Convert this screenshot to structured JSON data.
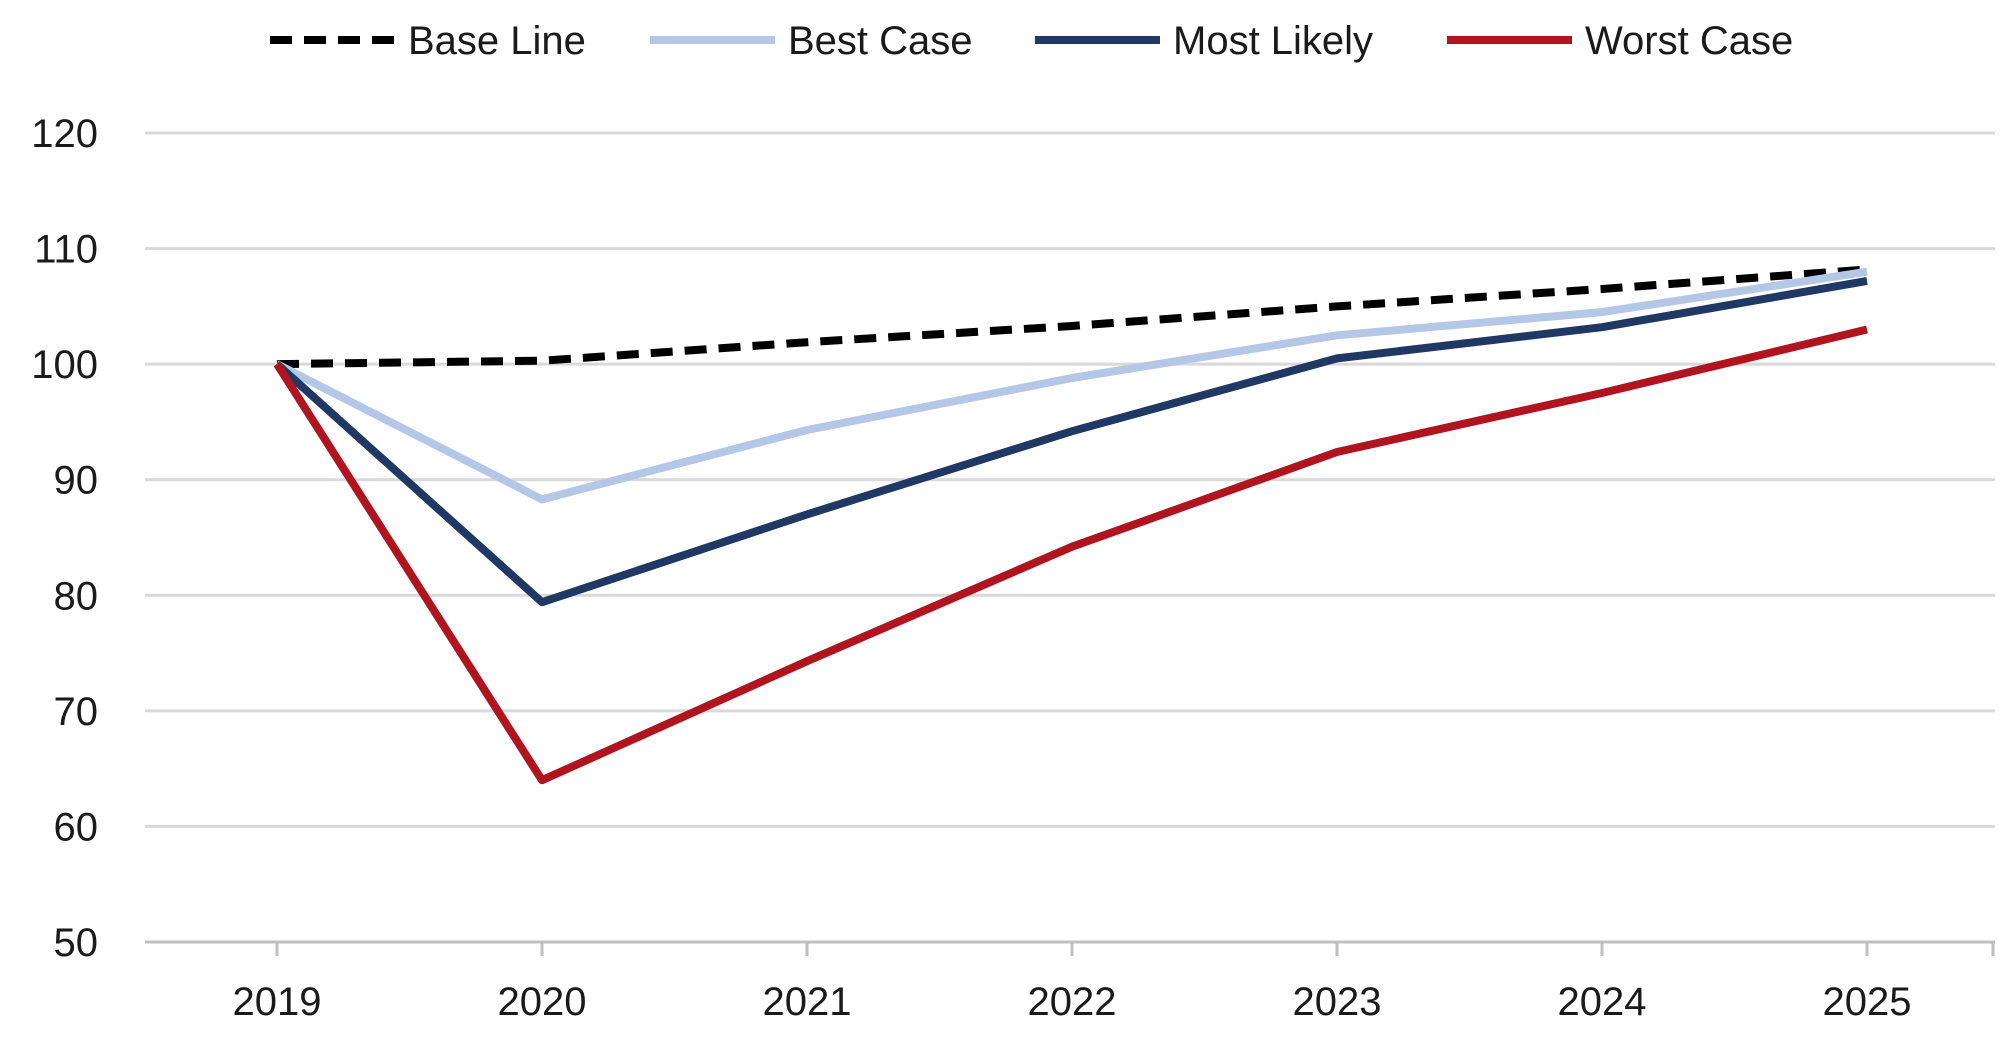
{
  "chart_data": {
    "type": "line",
    "title": "",
    "xlabel": "",
    "ylabel": "",
    "categories": [
      "2019",
      "2020",
      "2021",
      "2022",
      "2023",
      "2024",
      "2025"
    ],
    "ylim": [
      50,
      120
    ],
    "yticks": [
      50,
      60,
      70,
      80,
      90,
      100,
      110,
      120
    ],
    "grid": true,
    "legend_position": "top",
    "series": [
      {
        "name": "Base Line",
        "color": "#000000",
        "dashed": true,
        "values": [
          100,
          100.3,
          101.9,
          103.3,
          105.0,
          106.5,
          108.2
        ]
      },
      {
        "name": "Best Case",
        "color": "#b4c7e7",
        "dashed": false,
        "values": [
          100,
          88.3,
          94.3,
          98.8,
          102.5,
          104.5,
          108.0
        ]
      },
      {
        "name": "Most Likely",
        "color": "#1f3864",
        "dashed": false,
        "values": [
          100,
          79.4,
          87.0,
          94.2,
          100.5,
          103.2,
          107.2
        ]
      },
      {
        "name": "Worst Case",
        "color": "#b0141e",
        "dashed": false,
        "values": [
          100,
          64.0,
          74.3,
          84.2,
          92.4,
          97.5,
          103.0
        ]
      }
    ]
  }
}
